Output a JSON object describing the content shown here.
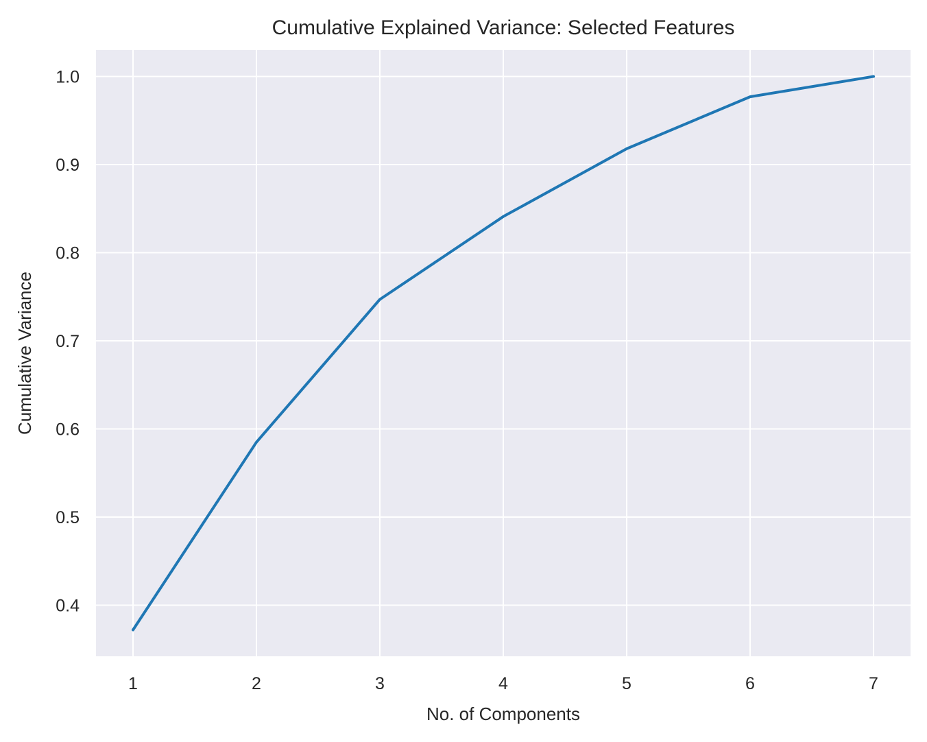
{
  "chart_data": {
    "type": "line",
    "title": "Cumulative Explained Variance: Selected Features",
    "xlabel": "No. of Components",
    "ylabel": "Cumulative Variance",
    "x": [
      1,
      2,
      3,
      4,
      5,
      6,
      7
    ],
    "x_tick_labels": [
      "1",
      "2",
      "3",
      "4",
      "5",
      "6",
      "7"
    ],
    "y_ticks": [
      0.4,
      0.5,
      0.6,
      0.7,
      0.8,
      0.9,
      1.0
    ],
    "y_tick_labels": [
      "0.4",
      "0.5",
      "0.6",
      "0.7",
      "0.8",
      "0.9",
      "1.0"
    ],
    "series": [
      {
        "values": [
          0.372,
          0.585,
          0.747,
          0.841,
          0.918,
          0.977,
          1.0
        ]
      }
    ],
    "xlim": [
      0.7,
      7.3
    ],
    "ylim": [
      0.342,
      1.03
    ],
    "grid": true,
    "colors": {
      "background": "#eaeaf2",
      "grid": "#ffffff",
      "line": "#1f77b4",
      "text": "#262626"
    }
  }
}
